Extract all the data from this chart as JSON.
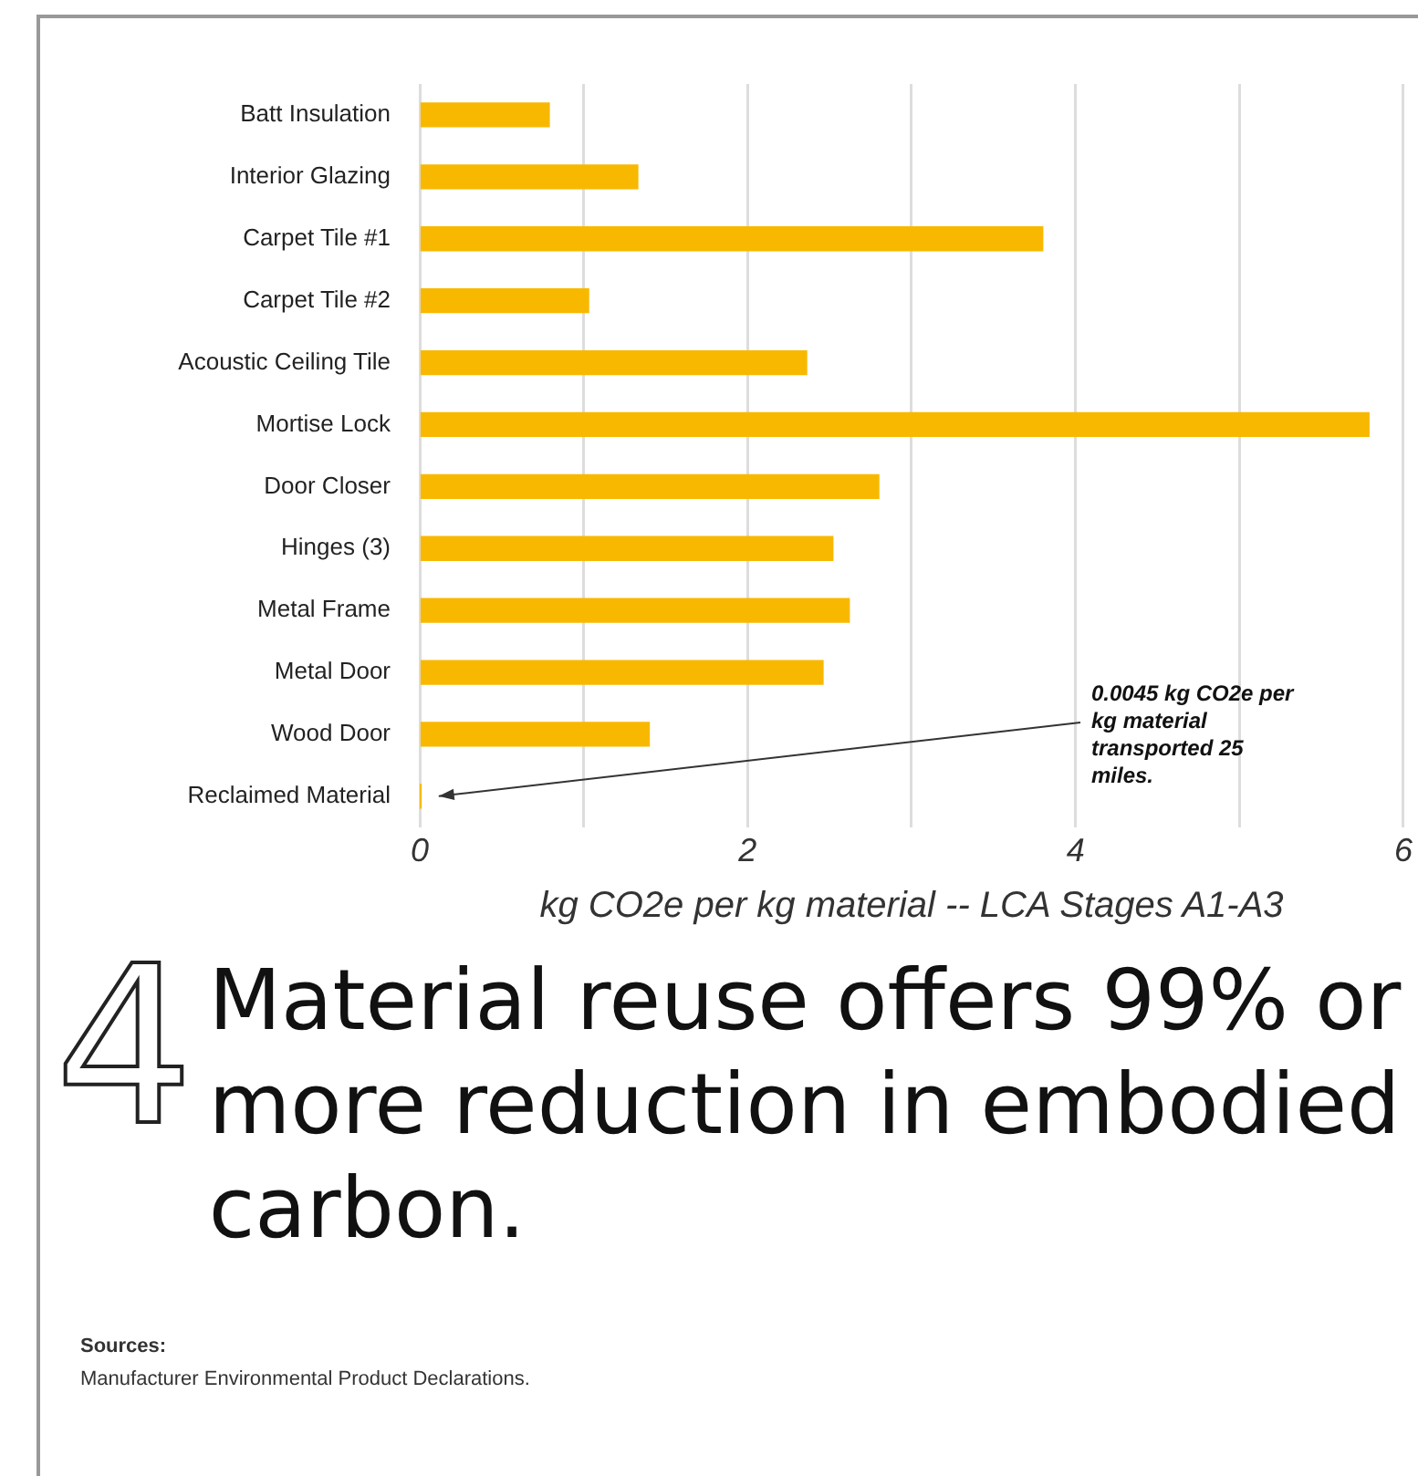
{
  "chart_data": {
    "type": "bar",
    "orientation": "horizontal",
    "title": "Material reuse offers 99% or more reduction in embodied carbon.",
    "xlabel": "kg CO2e per kg material -- LCA Stages A1-A3",
    "categories": [
      "Batt Insulation",
      "Interior Glazing",
      "Carpet Tile #1",
      "Carpet Tile #2",
      "Acoustic Ceiling Tile",
      "Mortise Lock",
      "Door Closer",
      "Hinges (3)",
      "Metal Frame",
      "Metal Door",
      "Wood Door",
      "Reclaimed Material"
    ],
    "values": [
      0.79,
      1.33,
      3.8,
      1.03,
      2.36,
      5.79,
      2.8,
      2.52,
      2.62,
      2.46,
      1.4,
      0.0045
    ],
    "color": "#f9b800",
    "xlim": [
      0,
      6
    ],
    "xticks": [
      0,
      {
        "value": 1,
        "label": null
      },
      2,
      {
        "value": 3,
        "label": null
      },
      4,
      {
        "value": 5,
        "label": null
      },
      6
    ],
    "grid": "x",
    "legend": false,
    "annotations": [
      "0.0045 kg CO2e per kg material transported 25 miles.",
      "4",
      "Sources:",
      "Manufacturer Environmental Product Declarations."
    ]
  }
}
